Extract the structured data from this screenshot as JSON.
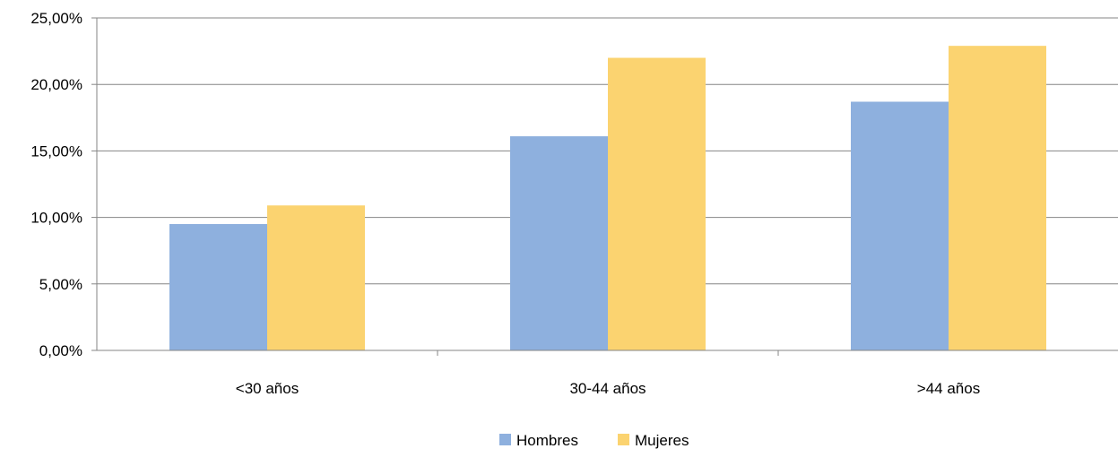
{
  "chart_data": {
    "type": "bar",
    "categories": [
      "<30 años",
      "30-44 años",
      ">44 años"
    ],
    "series": [
      {
        "name": "Hombres",
        "values": [
          9.5,
          16.1,
          18.7
        ],
        "color": "#8eb0de"
      },
      {
        "name": "Mujeres",
        "values": [
          10.9,
          22.0,
          22.9
        ],
        "color": "#fbd370"
      }
    ],
    "ylim": [
      0,
      25
    ],
    "yticks": [
      "0,00%",
      "5,00%",
      "10,00%",
      "15,00%",
      "20,00%",
      "25,00%"
    ],
    "ytick_values": [
      0,
      5,
      10,
      15,
      20,
      25
    ],
    "grid": true,
    "legend": "bottom"
  }
}
